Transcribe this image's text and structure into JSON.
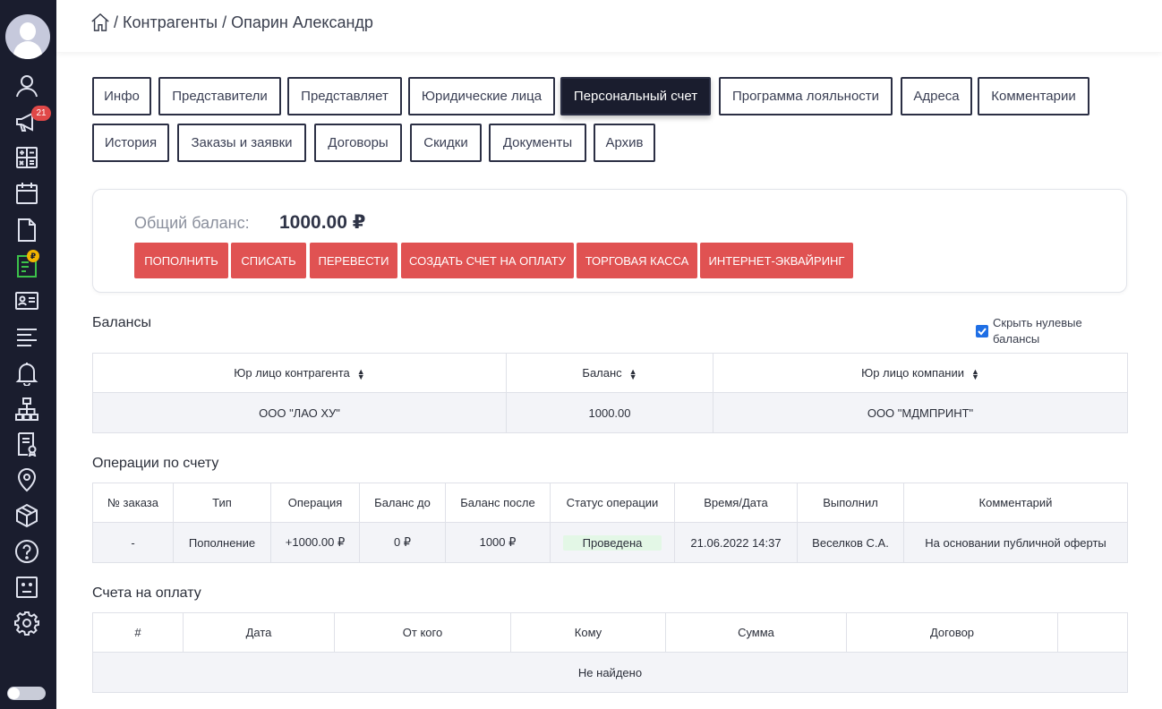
{
  "sidebar": {
    "badge_count": "21",
    "rub_badge": "₽",
    "icons": [
      "user-icon",
      "megaphone-icon",
      "calculator-icon",
      "calendar-icon",
      "document-icon",
      "invoice-icon",
      "id-card-icon",
      "list-icon",
      "bell-icon",
      "org-structure-icon",
      "certificate-icon",
      "location-icon",
      "box-icon",
      "help-icon",
      "robot-icon",
      "gear-icon"
    ]
  },
  "breadcrumb": {
    "sep1": "/",
    "item1": "Контрагенты",
    "sep2": "/",
    "item2": "Опарин Александр"
  },
  "tabs": [
    {
      "label": "Инфо",
      "active": false
    },
    {
      "label": "Представители",
      "active": false
    },
    {
      "label": "Представляет",
      "active": false
    },
    {
      "label": "Юридические лица",
      "active": false
    },
    {
      "label": "Персональный счет",
      "active": true
    },
    {
      "label": "Программа лояльности",
      "active": false
    },
    {
      "label": "Адреса",
      "active": false
    },
    {
      "label": "Комментарии",
      "active": false
    },
    {
      "label": "История",
      "active": false
    },
    {
      "label": "Заказы и заявки",
      "active": false
    },
    {
      "label": "Договоры",
      "active": false
    },
    {
      "label": "Скидки",
      "active": false
    },
    {
      "label": "Документы",
      "active": false
    },
    {
      "label": "Архив",
      "active": false
    }
  ],
  "balance": {
    "label": "Общий баланс:",
    "value": "1000.00 ₽",
    "actions": [
      "ПОПОЛНИТЬ",
      "СПИСАТЬ",
      "ПЕРЕВЕСТИ",
      "СОЗДАТЬ СЧЕТ НА ОПЛАТУ",
      "ТОРГОВАЯ КАССА",
      "ИНТЕРНЕТ-ЭКВАЙРИНГ"
    ],
    "action_color": "#e05252"
  },
  "balances_section": {
    "title": "Балансы",
    "hide_zero_label": "Скрыть нулевые балансы",
    "hide_zero_checked": true,
    "columns": [
      "Юр лицо контрагента",
      "Баланс",
      "Юр лицо компании"
    ],
    "rows": [
      [
        "ООО \"ЛАО ХУ\"",
        "1000.00",
        "ООО \"МДМПРИНТ\""
      ]
    ]
  },
  "operations_section": {
    "title": "Операции по счету",
    "columns": [
      "№ заказа",
      "Тип",
      "Операция",
      "Баланс до",
      "Баланс после",
      "Статус операции",
      "Время/Дата",
      "Выполнил",
      "Комментарий"
    ],
    "rows": [
      [
        "-",
        "Пополнение",
        "+1000.00 ₽",
        "0 ₽",
        "1000 ₽",
        "Проведена",
        "21.06.2022 14:37",
        "Веселков С.А.",
        "На основании публичной оферты"
      ]
    ],
    "status_color": "#e3f7e6"
  },
  "invoices_section": {
    "title": "Счета на оплату",
    "columns": [
      "#",
      "Дата",
      "От кого",
      "Кому",
      "Сумма",
      "Договор",
      ""
    ],
    "empty_text": "Не найдено"
  }
}
